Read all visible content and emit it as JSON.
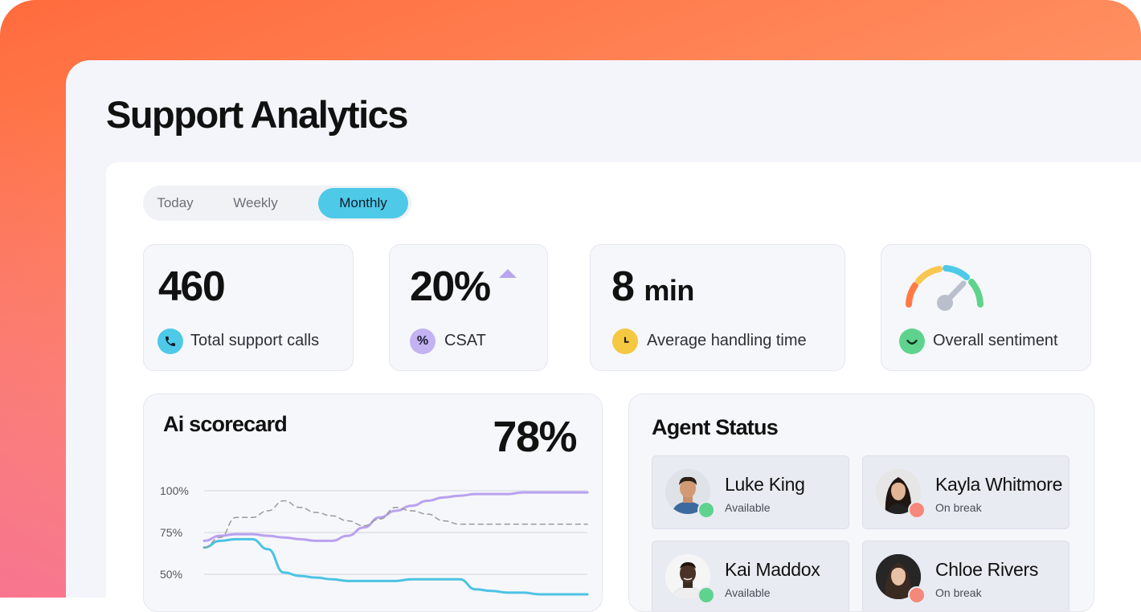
{
  "page_title": "Support Analytics",
  "tabs": [
    {
      "label": "Today",
      "active": false
    },
    {
      "label": "Weekly",
      "active": false
    },
    {
      "label": "Monthly",
      "active": true
    }
  ],
  "stats": {
    "total_calls": {
      "value": "460",
      "label": "Total support calls",
      "icon": "phone-icon",
      "icon_bg": "#4ec9e8"
    },
    "csat": {
      "value": "20%",
      "label": "CSAT",
      "icon": "percent-icon",
      "icon_bg": "#c3b3f2",
      "trend": "up-triangle-icon"
    },
    "aht": {
      "value": "8",
      "unit": "min",
      "label": "Average handling time",
      "icon": "clock-icon",
      "icon_bg": "#f5c842"
    },
    "sentiment": {
      "label": "Overall sentiment",
      "icon": "smile-icon",
      "icon_bg": "#5fd38d",
      "gauge_icon": "sentiment-gauge-icon"
    }
  },
  "scorecard": {
    "title": "Ai scorecard",
    "percent": "78%"
  },
  "chart_data": {
    "type": "line",
    "title": "",
    "ylim": [
      40,
      100
    ],
    "y_ticks": [
      "100%",
      "75%",
      "50%"
    ],
    "y_tick_values": [
      100,
      75,
      50
    ],
    "x": [
      0,
      1,
      2,
      3,
      4,
      5,
      6,
      7,
      8,
      9,
      10,
      11,
      12,
      13,
      14,
      15,
      16,
      17,
      18,
      19,
      20,
      21,
      22,
      23,
      24
    ],
    "series": [
      {
        "color": "#b9a1f0",
        "style": "solid",
        "values": [
          70,
          73,
          74,
          74,
          73,
          72,
          71,
          70,
          70,
          73,
          78,
          84,
          88,
          91,
          94,
          96,
          97,
          98,
          98,
          98,
          99,
          99,
          99,
          99,
          99
        ]
      },
      {
        "color": "#4cc3e2",
        "style": "solid",
        "values": [
          66,
          70,
          71,
          71,
          65,
          51,
          49,
          48,
          47,
          46,
          46,
          46,
          46,
          47,
          47,
          47,
          47,
          41,
          40,
          39,
          39,
          38,
          38,
          38,
          38
        ]
      },
      {
        "color": "#9a9a9a",
        "style": "dashed",
        "values": [
          66,
          72,
          84,
          84,
          88,
          94,
          90,
          87,
          85,
          82,
          79,
          83,
          90,
          88,
          86,
          82,
          80,
          80,
          80,
          80,
          80,
          80,
          80,
          80,
          80
        ]
      }
    ]
  },
  "agent_status": {
    "title": "Agent Status",
    "agents": [
      {
        "name": "Luke King",
        "status": "Available",
        "status_color": "#5fd38d"
      },
      {
        "name": "Kayla Whitmore",
        "status": "On break",
        "status_color": "#f4887a"
      },
      {
        "name": "Kai Maddox",
        "status": "Available",
        "status_color": "#5fd38d"
      },
      {
        "name": "Chloe Rivers",
        "status": "On break",
        "status_color": "#f4887a"
      }
    ]
  }
}
